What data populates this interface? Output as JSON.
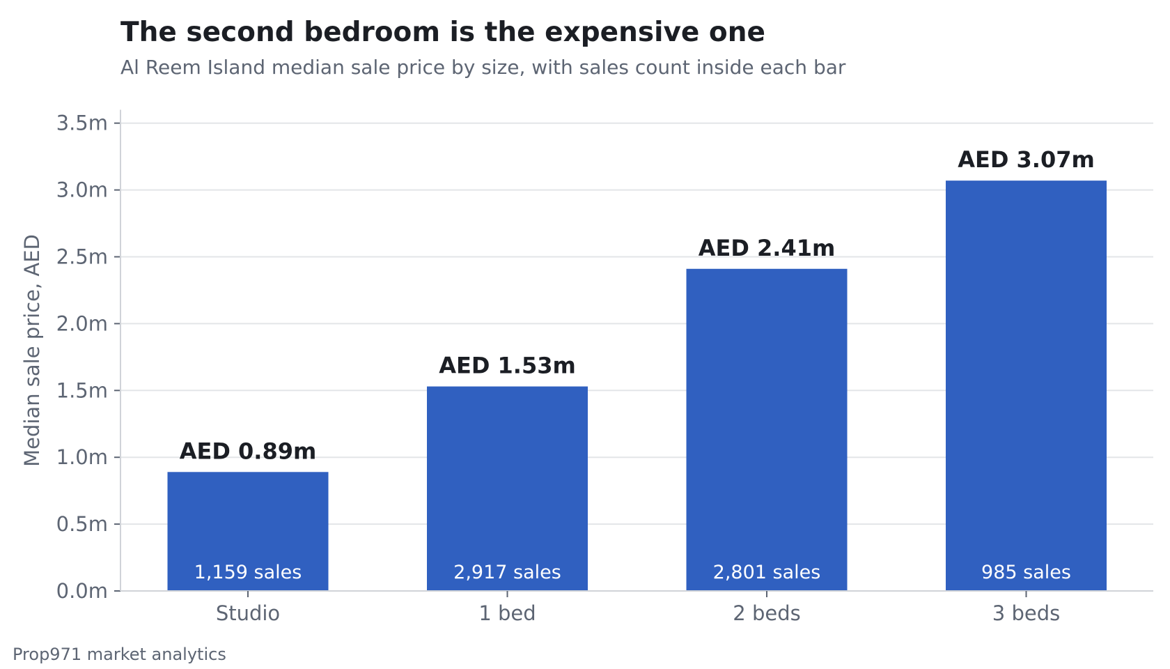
{
  "title": "The second bedroom is the expensive one",
  "subtitle": "Al Reem Island median sale price by size, with sales count inside each bar",
  "footer": "Prop971 market analytics",
  "chart_data": {
    "type": "bar",
    "title": "The second bedroom is the expensive one",
    "subtitle": "Al Reem Island median sale price by size, with sales count inside each bar",
    "xlabel": "",
    "ylabel": "Median sale price, AED",
    "categories": [
      "Studio",
      "1 bed",
      "2 beds",
      "3 beds"
    ],
    "values": [
      0.89,
      1.53,
      2.41,
      3.07
    ],
    "value_labels": [
      "AED 0.89m",
      "AED 1.53m",
      "AED 2.41m",
      "AED 3.07m"
    ],
    "sales_counts": [
      1159,
      2917,
      2801,
      985
    ],
    "sales_labels": [
      "1,159 sales",
      "2,917 sales",
      "2,801 sales",
      "985 sales"
    ],
    "ylim": [
      0,
      3.6
    ],
    "yticks": [
      0,
      0.5,
      1.0,
      1.5,
      2.0,
      2.5,
      3.0,
      3.5
    ],
    "ytick_labels": [
      "0.0m",
      "0.5m",
      "1.0m",
      "1.5m",
      "2.0m",
      "2.5m",
      "3.0m",
      "3.5m"
    ],
    "grid": true,
    "legend": "none",
    "colors": {
      "bar": "#3060c0",
      "grid": "#e3e5e8",
      "axis": "#d0d3d8",
      "text": "#1b1e24",
      "muted": "#5d6573"
    }
  }
}
